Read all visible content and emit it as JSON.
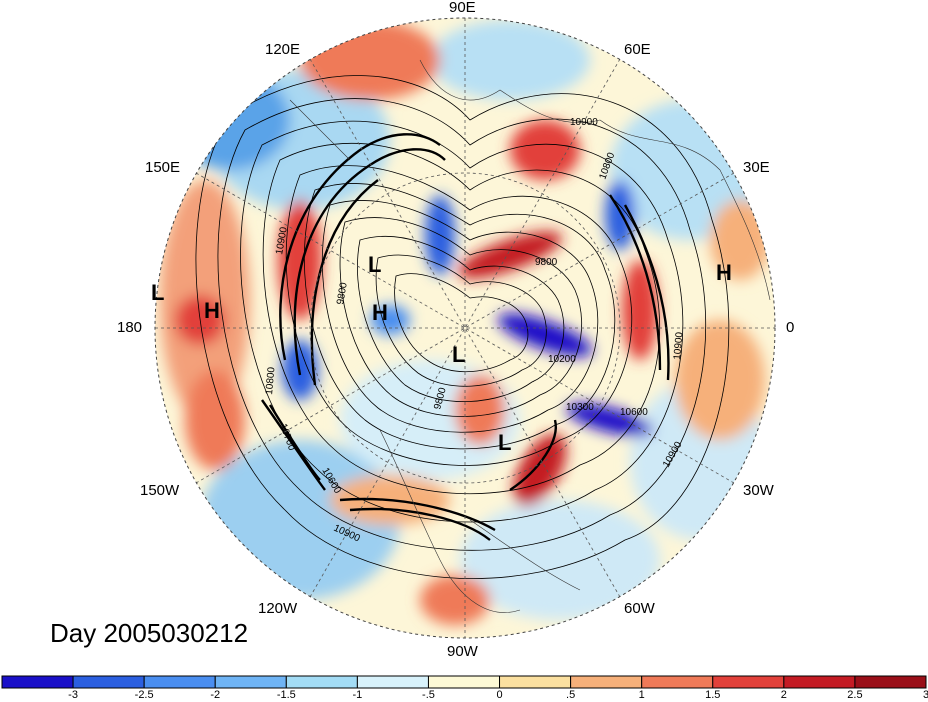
{
  "title": "Day 2005030212",
  "longitude_labels": {
    "top": "90E",
    "upper_left": "120E",
    "upper_right": "60E",
    "left_upper": "150E",
    "right_upper": "30E",
    "left": "180",
    "right": "0",
    "left_lower": "150W",
    "right_lower": "30W",
    "lower_left": "120W",
    "lower_right": "60W",
    "bottom": "90W"
  },
  "pressure_centers": [
    {
      "label": "H",
      "id": "h-east"
    },
    {
      "label": "H",
      "id": "h-dateline"
    },
    {
      "label": "H",
      "id": "h-center"
    },
    {
      "label": "L",
      "id": "l-north"
    },
    {
      "label": "L",
      "id": "l-pole"
    },
    {
      "label": "L",
      "id": "l-labrador"
    },
    {
      "label": "L",
      "id": "l-edge"
    }
  ],
  "contour_labels": [
    "10900",
    "10800",
    "9800",
    "10200",
    "10300",
    "10900",
    "10900",
    "9800",
    "10800",
    "10600",
    "10900",
    "10700",
    "9800",
    "10600",
    "10900"
  ],
  "colorbar": {
    "ticks": [
      "-3",
      "-2.5",
      "-2",
      "-1.5",
      "-1",
      "-.5",
      "0",
      ".5",
      "1",
      "1.5",
      "2",
      "2.5",
      "3"
    ],
    "colors": [
      "#1a10c8",
      "#2b5fe0",
      "#4a8ef0",
      "#6fb4f5",
      "#a3dcf5",
      "#d8f2fb",
      "#fdf9d6",
      "#fbe0a0",
      "#f6b07a",
      "#ef7a58",
      "#e2413a",
      "#c41b24",
      "#9a0f18"
    ]
  }
}
